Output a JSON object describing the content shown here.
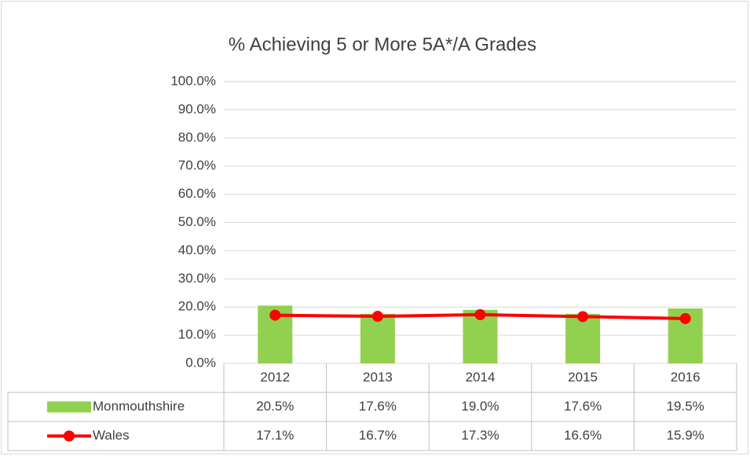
{
  "chart_data": {
    "type": "combo",
    "title": "% Achieving 5 or More 5A*/A Grades",
    "categories": [
      "2012",
      "2013",
      "2014",
      "2015",
      "2016"
    ],
    "series": [
      {
        "name": "Monmouthshire",
        "type": "bar",
        "color": "#92d050",
        "values": [
          20.5,
          17.6,
          19.0,
          17.6,
          19.5
        ],
        "value_labels": [
          "20.5%",
          "17.6%",
          "19.0%",
          "17.6%",
          "19.5%"
        ]
      },
      {
        "name": "Wales",
        "type": "line",
        "color": "#ff0000",
        "values": [
          17.1,
          16.7,
          17.3,
          16.6,
          15.9
        ],
        "value_labels": [
          "17.1%",
          "16.7%",
          "17.3%",
          "16.6%",
          "15.9%"
        ]
      }
    ],
    "ylim": [
      0,
      100
    ],
    "yticks": [
      {
        "value": 0,
        "label": "0.0%"
      },
      {
        "value": 10,
        "label": "10.0%"
      },
      {
        "value": 20,
        "label": "20.0%"
      },
      {
        "value": 30,
        "label": "30.0%"
      },
      {
        "value": 40,
        "label": "40.0%"
      },
      {
        "value": 50,
        "label": "50.0%"
      },
      {
        "value": 60,
        "label": "60.0%"
      },
      {
        "value": 70,
        "label": "70.0%"
      },
      {
        "value": 80,
        "label": "80.0%"
      },
      {
        "value": 90,
        "label": "90.0%"
      },
      {
        "value": 100,
        "label": "100.0%"
      }
    ],
    "grid": true,
    "data_table": true
  }
}
